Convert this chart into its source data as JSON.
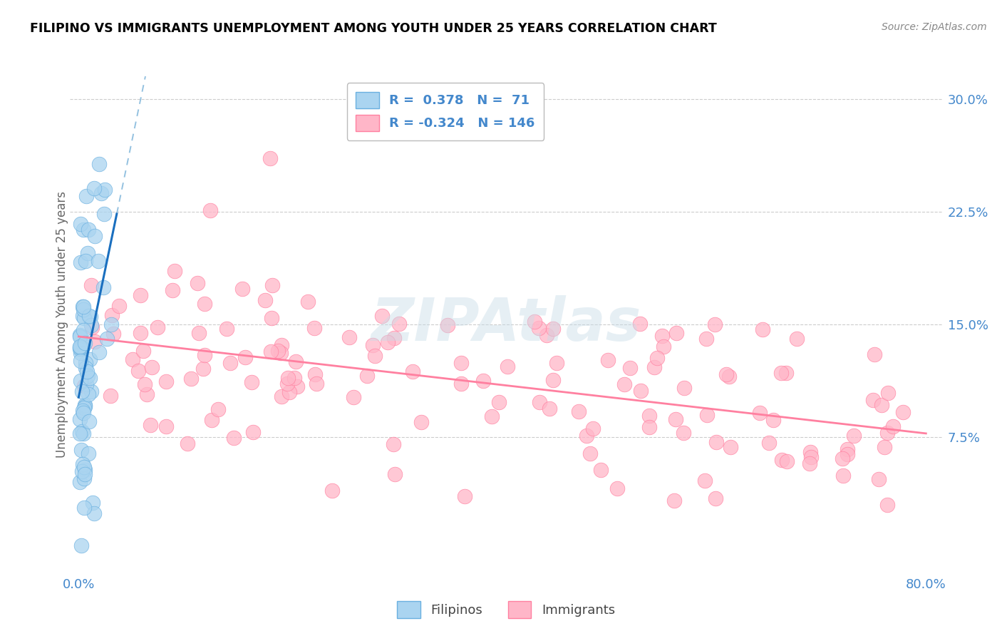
{
  "title": "FILIPINO VS IMMIGRANTS UNEMPLOYMENT AMONG YOUTH UNDER 25 YEARS CORRELATION CHART",
  "source": "Source: ZipAtlas.com",
  "ylabel_label": "Unemployment Among Youth under 25 years",
  "xlim": [
    0.0,
    0.8
  ],
  "ylim": [
    0.0,
    0.31
  ],
  "ytick_vals": [
    0.075,
    0.15,
    0.225,
    0.3
  ],
  "ytick_labels": [
    "7.5%",
    "15.0%",
    "22.5%",
    "30.0%"
  ],
  "xtick_vals": [
    0.0,
    0.8
  ],
  "xtick_labels": [
    "0.0%",
    "80.0%"
  ],
  "filipino_color": "#aad4f0",
  "filipino_edge": "#6ab0e0",
  "immigrant_color": "#ffb6c8",
  "immigrant_edge": "#ff80a0",
  "filipino_R": 0.378,
  "filipino_N": 71,
  "immigrant_R": -0.324,
  "immigrant_N": 146,
  "legend_label_filipino": "Filipinos",
  "legend_label_immigrant": "Immigrants",
  "reg_blue_solid_color": "#1a6fbf",
  "reg_blue_dash_color": "#88bbdd",
  "reg_pink_color": "#ff80a0",
  "watermark": "ZIPAtlas",
  "watermark_color": "#c8dce8",
  "tick_color": "#4488cc",
  "ylabel_color": "#666666",
  "grid_color": "#cccccc",
  "title_color": "#000000",
  "source_color": "#888888"
}
